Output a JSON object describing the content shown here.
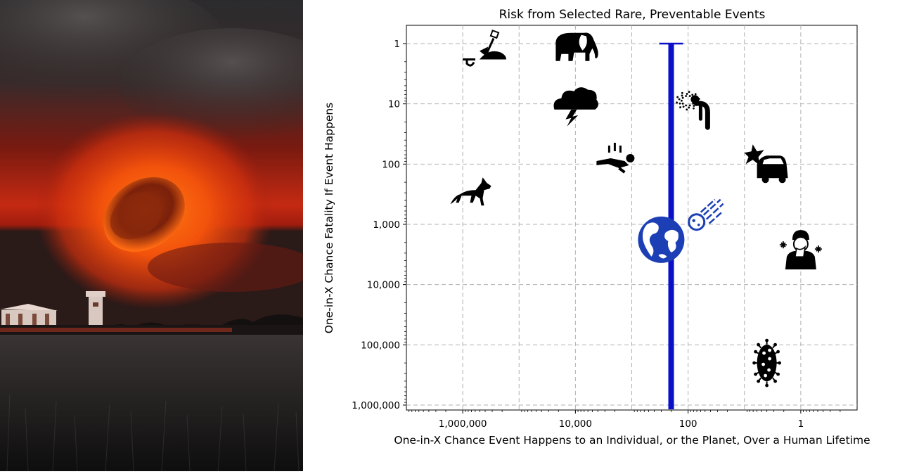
{
  "photo": {
    "description_icon": "meteor-over-field-photo"
  },
  "chart_data": {
    "type": "scatter",
    "title": "Risk from Selected Rare, Preventable Events",
    "xlabel": "One-in-X Chance Event Happens to an Individual, or the Planet, Over a Human Lifetime",
    "ylabel": "One-in-X Chance Fatality If Event Happens",
    "x_scale": "log",
    "y_scale": "log",
    "x_reversed": true,
    "y_reversed": true,
    "xlim": [
      10000000,
      0.1
    ],
    "ylim": [
      1,
      1000000
    ],
    "grid": true,
    "x_ticks": [
      {
        "value": 1000000,
        "label": "1,000,000"
      },
      {
        "value": 10000,
        "label": "10,000"
      },
      {
        "value": 100,
        "label": "100"
      },
      {
        "value": 1,
        "label": "1"
      }
    ],
    "y_ticks": [
      {
        "value": 1,
        "label": "1"
      },
      {
        "value": 10,
        "label": "10"
      },
      {
        "value": 100,
        "label": "100"
      },
      {
        "value": 1000,
        "label": "1,000"
      },
      {
        "value": 10000,
        "label": "10,000"
      },
      {
        "value": 100000,
        "label": "100,000"
      },
      {
        "value": 1000000,
        "label": "1,000,000"
      }
    ],
    "points": [
      {
        "icon": "buried-by-dirt-icon",
        "x": 400000,
        "y": 1.4
      },
      {
        "icon": "elephant-icon",
        "x": 10000,
        "y": 1.2
      },
      {
        "icon": "lightning-storm-icon",
        "x": 10000,
        "y": 10
      },
      {
        "icon": "heat-exhaustion-icon",
        "x": 80,
        "y": 11
      },
      {
        "icon": "fall-icon",
        "x": 2000,
        "y": 80
      },
      {
        "icon": "car-crash-icon",
        "x": 4,
        "y": 100
      },
      {
        "icon": "wolf-icon",
        "x": 700000,
        "y": 300
      },
      {
        "icon": "asteroid-icon",
        "x": 50,
        "y": 700
      },
      {
        "icon": "earth-icon",
        "x": 300,
        "y": 1800
      },
      {
        "icon": "sick-person-icon",
        "x": 1,
        "y": 2500
      },
      {
        "icon": "virus-icon",
        "x": 4,
        "y": 200000
      }
    ],
    "range_bar": {
      "x": 200,
      "y_min": 1,
      "y_max": 1000000,
      "color": "#0a10c8"
    },
    "highlight_color": "#1c3fb5"
  }
}
